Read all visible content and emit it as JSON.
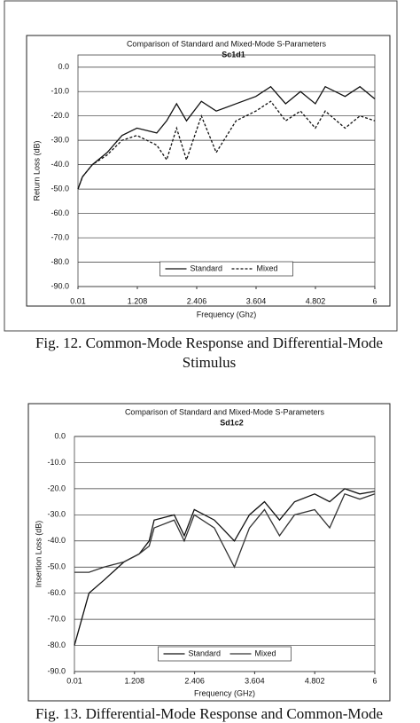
{
  "chart_data": [
    {
      "type": "line",
      "title": "Comparison of Standard and Mixed-Mode S-Parameters",
      "subtitle": "Sc1d1",
      "xlabel": "Frequency (Ghz)",
      "ylabel": "Return Loss (dB)",
      "x": [
        0.01,
        0.1,
        0.3,
        0.6,
        0.9,
        1.2,
        1.6,
        1.8,
        2.0,
        2.2,
        2.5,
        2.8,
        3.2,
        3.6,
        3.9,
        4.2,
        4.5,
        4.8,
        5.0,
        5.4,
        5.7,
        6
      ],
      "series": [
        {
          "name": "Standard",
          "color": "#111111",
          "dashed": false,
          "values": [
            -50,
            -45,
            -40,
            -35,
            -28,
            -25,
            -27,
            -22,
            -15,
            -22,
            -14,
            -18,
            -15,
            -12,
            -8,
            -15,
            -10,
            -15,
            -8,
            -12,
            -8,
            -13
          ]
        },
        {
          "name": "Mixed",
          "color": "#111111",
          "dashed": true,
          "values": [
            -50,
            -45,
            -40,
            -36,
            -30,
            -28,
            -32,
            -38,
            -25,
            -38,
            -20,
            -35,
            -22,
            -18,
            -14,
            -22,
            -18,
            -25,
            -18,
            -25,
            -20,
            -22
          ]
        }
      ],
      "xlim": [
        0.01,
        6
      ],
      "xticks": [
        0.01,
        1.208,
        2.406,
        3.604,
        4.802,
        6
      ],
      "ylim": [
        -90,
        5
      ],
      "yticks": [
        {
          "value": 0,
          "label": "0.0"
        },
        {
          "value": -10,
          "label": "-10.0"
        },
        {
          "value": -20,
          "label": "-20.0"
        },
        {
          "value": -30,
          "label": "-30.0"
        },
        {
          "value": -40,
          "label": "-40.0"
        },
        {
          "value": -50,
          "label": "-50.0"
        },
        {
          "value": -60,
          "label": "-60.0"
        },
        {
          "value": -70,
          "label": "-70.0"
        },
        {
          "value": -80,
          "label": "-80.0"
        },
        {
          "value": -90,
          "label": "-90.0"
        }
      ],
      "grid": true,
      "legend": "bottom"
    },
    {
      "type": "line",
      "title": "Comparison of Standard and Mixed-Mode S-Parameters",
      "subtitle": "Sd1c2",
      "xlabel": "Frequency (GHz)",
      "ylabel": "Insertion Loss (dB)",
      "x": [
        0.01,
        0.3,
        0.6,
        1.0,
        1.3,
        1.5,
        1.6,
        2.0,
        2.2,
        2.4,
        2.8,
        3.2,
        3.5,
        3.8,
        4.1,
        4.4,
        4.8,
        5.1,
        5.4,
        5.7,
        6
      ],
      "series": [
        {
          "name": "Standard",
          "color": "#111111",
          "dashed": false,
          "values": [
            -80,
            -60,
            -55,
            -48,
            -45,
            -40,
            -32,
            -30,
            -38,
            -28,
            -32,
            -40,
            -30,
            -25,
            -32,
            -25,
            -22,
            -25,
            -20,
            -22,
            -21
          ]
        },
        {
          "name": "Mixed",
          "color": "#333333",
          "dashed": false,
          "values": [
            -52,
            -52,
            -50,
            -48,
            -45,
            -42,
            -35,
            -32,
            -40,
            -30,
            -35,
            -50,
            -35,
            -28,
            -38,
            -30,
            -28,
            -35,
            -22,
            -24,
            -22
          ]
        }
      ],
      "xlim": [
        0.01,
        6
      ],
      "xticks": [
        0.01,
        1.208,
        2.406,
        3.604,
        4.802,
        6
      ],
      "ylim": [
        -90,
        0
      ],
      "yticks": [
        {
          "value": 0,
          "label": "0.0"
        },
        {
          "value": -10,
          "label": "-10.0"
        },
        {
          "value": -20,
          "label": "-20.0"
        },
        {
          "value": -30,
          "label": "-30.0"
        },
        {
          "value": -40,
          "label": "-40.0"
        },
        {
          "value": -50,
          "label": "-50.0"
        },
        {
          "value": -60,
          "label": "-60.0"
        },
        {
          "value": -70,
          "label": "-70.0"
        },
        {
          "value": -80,
          "label": "-80.0"
        },
        {
          "value": -90,
          "label": "-90.0"
        }
      ],
      "grid": true,
      "legend": "bottom"
    }
  ],
  "captions": [
    [
      "Fig. 12. Common-Mode Response and Differential-Mode",
      "Stimulus"
    ],
    [
      "Fig. 13. Differential-Mode Response and Common-Mode"
    ]
  ]
}
